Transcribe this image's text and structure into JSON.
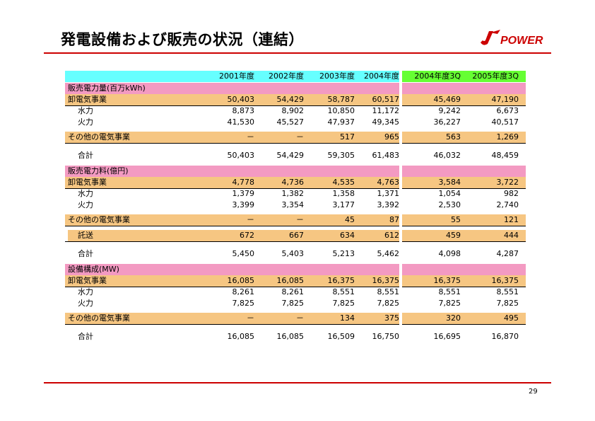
{
  "title": "発電設備および販売の状況（連結）",
  "logo_text": "POWER",
  "page_number": "29",
  "headers": [
    "2001年度",
    "2002年度",
    "2003年度",
    "2004年度",
    "2004年度3Q",
    "2005年度3Q"
  ],
  "sections": [
    {
      "title": "販売電力量(百万kWh)",
      "rows": [
        {
          "label": "卸電気事業",
          "kind": "orange",
          "values": [
            "50,403",
            "54,429",
            "58,787",
            "60,517",
            "45,469",
            "47,190"
          ]
        },
        {
          "label": "水力",
          "kind": "indent",
          "values": [
            "8,873",
            "8,902",
            "10,850",
            "11,172",
            "9,242",
            "6,673"
          ]
        },
        {
          "label": "火力",
          "kind": "indent",
          "values": [
            "41,530",
            "45,527",
            "47,937",
            "49,345",
            "36,227",
            "40,517"
          ]
        },
        {
          "label": "その他の電気事業",
          "kind": "orange",
          "values": [
            "－",
            "－",
            "517",
            "965",
            "563",
            "1,269"
          ]
        },
        {
          "label": "合計",
          "kind": "total",
          "values": [
            "50,403",
            "54,429",
            "59,305",
            "61,483",
            "46,032",
            "48,459"
          ]
        }
      ]
    },
    {
      "title": "販売電力料(億円)",
      "rows": [
        {
          "label": "卸電気事業",
          "kind": "orange",
          "values": [
            "4,778",
            "4,736",
            "4,535",
            "4,763",
            "3,584",
            "3,722"
          ]
        },
        {
          "label": "水力",
          "kind": "indent",
          "values": [
            "1,379",
            "1,382",
            "1,358",
            "1,371",
            "1,054",
            "982"
          ]
        },
        {
          "label": "火力",
          "kind": "indent",
          "values": [
            "3,399",
            "3,354",
            "3,177",
            "3,392",
            "2,530",
            "2,740"
          ]
        },
        {
          "label": "その他の電気事業",
          "kind": "orange",
          "values": [
            "－",
            "－",
            "45",
            "87",
            "55",
            "121"
          ]
        },
        {
          "label": "託送",
          "kind": "orange-indent",
          "values": [
            "672",
            "667",
            "634",
            "612",
            "459",
            "444"
          ]
        },
        {
          "label": "合計",
          "kind": "total",
          "values": [
            "5,450",
            "5,403",
            "5,213",
            "5,462",
            "4,098",
            "4,287"
          ]
        }
      ]
    },
    {
      "title": "設備構成(MW)",
      "rows": [
        {
          "label": "卸電気事業",
          "kind": "orange",
          "values": [
            "16,085",
            "16,085",
            "16,375",
            "16,375",
            "16,375",
            "16,375"
          ]
        },
        {
          "label": "水力",
          "kind": "indent",
          "values": [
            "8,261",
            "8,261",
            "8,551",
            "8,551",
            "8,551",
            "8,551"
          ]
        },
        {
          "label": "火力",
          "kind": "indent",
          "values": [
            "7,825",
            "7,825",
            "7,825",
            "7,825",
            "7,825",
            "7,825"
          ]
        },
        {
          "label": "その他の電気事業",
          "kind": "orange",
          "values": [
            "－",
            "－",
            "134",
            "375",
            "320",
            "495"
          ]
        },
        {
          "label": "合計",
          "kind": "total",
          "values": [
            "16,085",
            "16,085",
            "16,509",
            "16,750",
            "16,695",
            "16,870"
          ]
        }
      ]
    }
  ],
  "colors": {
    "header_main": "#66ffff",
    "header_q": "#66ff33",
    "section": "#f39ac2",
    "category": "#f6c682",
    "rule": "#cc0000"
  }
}
